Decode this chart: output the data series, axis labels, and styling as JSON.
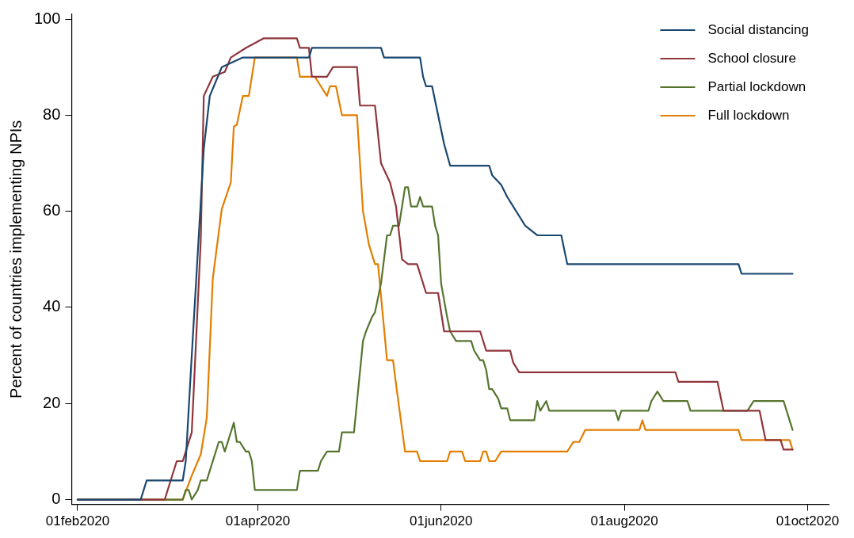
{
  "chart_data": {
    "type": "line",
    "ylabel": "Percent of countries implementing NPIs",
    "xlim": [
      "2020-01-30",
      "2020-10-08"
    ],
    "ylim": [
      -1,
      101
    ],
    "yticks": [
      0,
      20,
      40,
      60,
      80,
      100
    ],
    "xticks": [
      {
        "value": "2020-02-01",
        "label": "01feb2020"
      },
      {
        "value": "2020-04-01",
        "label": "01apr2020"
      },
      {
        "value": "2020-06-01",
        "label": "01jun2020"
      },
      {
        "value": "2020-08-01",
        "label": "01aug2020"
      },
      {
        "value": "2020-10-01",
        "label": "01oct2020"
      }
    ],
    "grid": false,
    "legend": "top right",
    "marker": "none",
    "line_style": "solid",
    "series": [
      {
        "name": "Social distancing",
        "color": "#1a476f",
        "x": [
          "2020-02-01",
          "2020-02-22",
          "2020-02-23",
          "2020-02-24",
          "2020-03-07",
          "2020-03-08",
          "2020-03-10",
          "2020-03-13",
          "2020-03-14",
          "2020-03-16",
          "2020-03-20",
          "2020-03-27",
          "2020-04-18",
          "2020-04-19",
          "2020-05-12",
          "2020-05-13",
          "2020-05-25",
          "2020-05-26",
          "2020-05-27",
          "2020-05-29",
          "2020-06-02",
          "2020-06-04",
          "2020-06-17",
          "2020-06-18",
          "2020-06-21",
          "2020-06-23",
          "2020-06-25",
          "2020-06-27",
          "2020-06-29",
          "2020-07-03",
          "2020-07-11",
          "2020-07-13",
          "2020-09-08",
          "2020-09-09",
          "2020-09-26"
        ],
        "values": [
          0,
          0,
          2,
          4,
          4,
          8,
          30,
          62,
          73,
          84,
          90,
          92,
          92,
          94,
          94,
          92,
          92,
          88,
          86,
          86,
          74,
          69.5,
          69.5,
          67.5,
          65.5,
          63,
          61,
          59,
          57,
          55,
          55,
          49,
          49,
          47,
          47
        ]
      },
      {
        "name": "School closure",
        "color": "#90353b",
        "x": [
          "2020-02-01",
          "2020-03-01",
          "2020-03-05",
          "2020-03-07",
          "2020-03-08",
          "2020-03-10",
          "2020-03-13",
          "2020-03-14",
          "2020-03-17",
          "2020-03-21",
          "2020-03-23",
          "2020-03-28",
          "2020-04-03",
          "2020-04-14",
          "2020-04-15",
          "2020-04-18",
          "2020-04-19",
          "2020-04-24",
          "2020-04-26",
          "2020-05-04",
          "2020-05-05",
          "2020-05-10",
          "2020-05-12",
          "2020-05-15",
          "2020-05-17",
          "2020-05-19",
          "2020-05-21",
          "2020-05-24",
          "2020-05-27",
          "2020-05-31",
          "2020-06-02",
          "2020-06-14",
          "2020-06-16",
          "2020-06-24",
          "2020-06-25",
          "2020-06-27",
          "2020-08-18",
          "2020-08-19",
          "2020-09-01",
          "2020-09-03",
          "2020-09-15",
          "2020-09-17",
          "2020-09-22",
          "2020-09-23",
          "2020-09-26"
        ],
        "values": [
          0,
          0,
          8,
          8,
          10,
          14,
          54,
          84,
          88,
          89,
          92,
          94,
          96,
          96,
          94,
          94,
          88,
          88,
          90,
          90,
          82,
          82,
          70,
          66,
          61,
          50,
          49,
          49,
          43,
          43,
          35,
          35,
          31,
          31,
          28.5,
          26.5,
          26.5,
          24.5,
          24.5,
          18.5,
          18.5,
          12.4,
          12.4,
          10.4,
          10.4
        ]
      },
      {
        "name": "Partial lockdown",
        "color": "#55752f",
        "x": [
          "2020-02-01",
          "2020-03-07",
          "2020-03-08",
          "2020-03-09",
          "2020-03-10",
          "2020-03-12",
          "2020-03-13",
          "2020-03-15",
          "2020-03-16",
          "2020-03-19",
          "2020-03-20",
          "2020-03-21",
          "2020-03-24",
          "2020-03-25",
          "2020-03-26",
          "2020-03-28",
          "2020-03-29",
          "2020-03-30",
          "2020-03-31",
          "2020-04-14",
          "2020-04-15",
          "2020-04-21",
          "2020-04-22",
          "2020-04-24",
          "2020-04-28",
          "2020-04-29",
          "2020-05-03",
          "2020-05-06",
          "2020-05-07",
          "2020-05-09",
          "2020-05-10",
          "2020-05-12",
          "2020-05-14",
          "2020-05-15",
          "2020-05-16",
          "2020-05-18",
          "2020-05-20",
          "2020-05-21",
          "2020-05-22",
          "2020-05-24",
          "2020-05-25",
          "2020-05-26",
          "2020-05-29",
          "2020-05-30",
          "2020-05-31",
          "2020-06-01",
          "2020-06-03",
          "2020-06-04",
          "2020-06-06",
          "2020-06-11",
          "2020-06-12",
          "2020-06-14",
          "2020-06-15",
          "2020-06-16",
          "2020-06-17",
          "2020-06-18",
          "2020-06-20",
          "2020-06-21",
          "2020-06-23",
          "2020-06-24",
          "2020-07-02",
          "2020-07-03",
          "2020-07-04",
          "2020-07-06",
          "2020-07-07",
          "2020-07-29",
          "2020-07-30",
          "2020-07-31",
          "2020-08-09",
          "2020-08-10",
          "2020-08-12",
          "2020-08-14",
          "2020-08-22",
          "2020-08-23",
          "2020-09-11",
          "2020-09-13",
          "2020-09-23",
          "2020-09-26"
        ],
        "values": [
          0,
          0,
          2,
          2,
          0,
          2,
          4,
          4,
          6,
          12,
          12,
          10,
          16,
          12,
          12,
          10,
          10,
          8,
          2,
          2,
          6,
          6,
          8,
          10,
          10,
          14,
          14,
          33,
          35,
          38,
          39,
          45,
          55,
          55,
          57,
          57,
          65,
          65,
          61,
          61,
          63,
          61,
          61,
          57,
          55,
          45,
          38,
          35,
          33,
          33,
          31,
          29,
          29,
          27,
          23,
          23,
          21,
          19,
          19,
          16.5,
          16.5,
          20.5,
          18.5,
          20.5,
          18.5,
          18.5,
          16.5,
          18.5,
          18.5,
          20.5,
          22.5,
          20.5,
          20.5,
          18.5,
          18.5,
          20.5,
          20.5,
          14.5
        ]
      },
      {
        "name": "Full lockdown",
        "color": "#e37e00",
        "x": [
          "2020-02-01",
          "2020-03-07",
          "2020-03-10",
          "2020-03-13",
          "2020-03-15",
          "2020-03-17",
          "2020-03-20",
          "2020-03-23",
          "2020-03-24",
          "2020-03-25",
          "2020-03-27",
          "2020-03-29",
          "2020-03-31",
          "2020-04-14",
          "2020-04-15",
          "2020-04-20",
          "2020-04-22",
          "2020-04-24",
          "2020-04-25",
          "2020-04-27",
          "2020-04-29",
          "2020-05-04",
          "2020-05-06",
          "2020-05-08",
          "2020-05-10",
          "2020-05-11",
          "2020-05-14",
          "2020-05-16",
          "2020-05-17",
          "2020-05-20",
          "2020-05-24",
          "2020-05-25",
          "2020-06-03",
          "2020-06-04",
          "2020-06-08",
          "2020-06-09",
          "2020-06-14",
          "2020-06-15",
          "2020-06-16",
          "2020-06-17",
          "2020-06-19",
          "2020-06-21",
          "2020-07-13",
          "2020-07-15",
          "2020-07-17",
          "2020-07-19",
          "2020-08-06",
          "2020-08-07",
          "2020-08-08",
          "2020-09-08",
          "2020-09-09",
          "2020-09-25",
          "2020-09-26"
        ],
        "values": [
          0,
          0,
          5,
          9.4,
          17,
          46,
          60.5,
          66,
          77.6,
          78,
          84,
          84,
          92,
          92,
          88,
          88,
          86,
          84,
          86,
          86,
          80,
          80,
          60,
          53,
          49,
          49,
          29,
          29,
          24,
          10,
          10,
          8,
          8,
          10,
          10,
          8,
          8,
          10,
          10,
          8,
          8,
          10,
          10,
          12,
          12,
          14.5,
          14.5,
          16.5,
          14.5,
          14.5,
          12.4,
          12.4,
          10.4
        ]
      }
    ]
  }
}
